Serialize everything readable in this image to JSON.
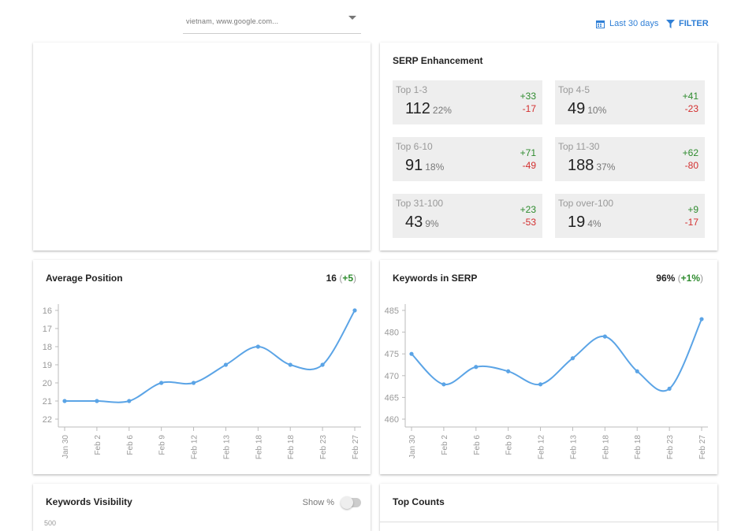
{
  "header": {
    "site_selector": {
      "text": "vietnam, www.google.com..."
    },
    "date_range_label": "Last 30 days",
    "filter_label": "FILTER"
  },
  "serp_enhancement": {
    "title": "SERP Enhancement",
    "tiles": [
      {
        "label": "Top 1-3",
        "value": "112",
        "pct": "22%",
        "up": "+33",
        "down": "-17"
      },
      {
        "label": "Top 4-5",
        "value": "49",
        "pct": "10%",
        "up": "+41",
        "down": "-23"
      },
      {
        "label": "Top 6-10",
        "value": "91",
        "pct": "18%",
        "up": "+71",
        "down": "-49"
      },
      {
        "label": "Top 11-30",
        "value": "188",
        "pct": "37%",
        "up": "+62",
        "down": "-80"
      },
      {
        "label": "Top 31-100",
        "value": "43",
        "pct": "9%",
        "up": "+23",
        "down": "-53"
      },
      {
        "label": "Top over-100",
        "value": "19",
        "pct": "4%",
        "up": "+9",
        "down": "-17"
      }
    ]
  },
  "average_position": {
    "title": "Average Position",
    "value": "16",
    "change_open": "(",
    "change": "+5",
    "change_close": ")"
  },
  "keywords_in_serp": {
    "title": "Keywords in SERP",
    "value": "96%",
    "change_open": "(",
    "change": "+1%",
    "change_close": ")"
  },
  "keywords_visibility": {
    "title": "Keywords Visibility",
    "show_pct_label": "Show %",
    "first_tick": "500"
  },
  "top_counts": {
    "title": "Top Counts"
  },
  "colors": {
    "line": "#5ba4e6",
    "positive": "#2e8b2e",
    "negative": "#d32f2f",
    "accent": "#2f7fd6"
  },
  "chart_data": [
    {
      "type": "line",
      "title": "Average Position",
      "categories": [
        "Jan 30",
        "Feb 2",
        "Feb 6",
        "Feb 9",
        "Feb 12",
        "Feb 13",
        "Feb 18",
        "Feb 18",
        "Feb 23",
        "Feb 27"
      ],
      "values": [
        21,
        21,
        21,
        20,
        20,
        19,
        18,
        19,
        19,
        16
      ],
      "ylim": [
        22,
        16
      ],
      "yticks": [
        16,
        17,
        18,
        19,
        20,
        21,
        22
      ],
      "inverted": true
    },
    {
      "type": "line",
      "title": "Keywords in SERP",
      "categories": [
        "Jan 30",
        "Feb 2",
        "Feb 6",
        "Feb 9",
        "Feb 12",
        "Feb 13",
        "Feb 18",
        "Feb 18",
        "Feb 23",
        "Feb 27"
      ],
      "values": [
        475,
        468,
        472,
        471,
        468,
        474,
        479,
        471,
        467,
        483
      ],
      "ylim": [
        460,
        485
      ],
      "yticks": [
        460,
        465,
        470,
        475,
        480,
        485
      ],
      "inverted": false
    }
  ]
}
